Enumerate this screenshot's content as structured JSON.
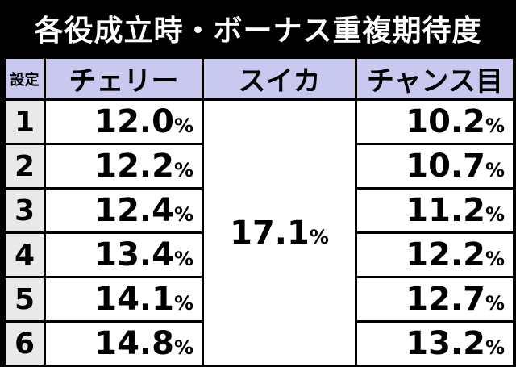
{
  "title": "各役成立時・ボーナス重複期待度",
  "headers": {
    "setting": "設定",
    "cherry": "チェリー",
    "suika": "スイカ",
    "chance": "チャンス目"
  },
  "suika_value": "17.1",
  "percent_sign": "%",
  "rows": [
    {
      "setting": "1",
      "cherry": "12.0",
      "chance": "10.2"
    },
    {
      "setting": "2",
      "cherry": "12.2",
      "chance": "10.7"
    },
    {
      "setting": "3",
      "cherry": "12.4",
      "chance": "11.2"
    },
    {
      "setting": "4",
      "cherry": "13.4",
      "chance": "12.2"
    },
    {
      "setting": "5",
      "cherry": "14.1",
      "chance": "12.7"
    },
    {
      "setting": "6",
      "cherry": "14.8",
      "chance": "13.2"
    }
  ]
}
